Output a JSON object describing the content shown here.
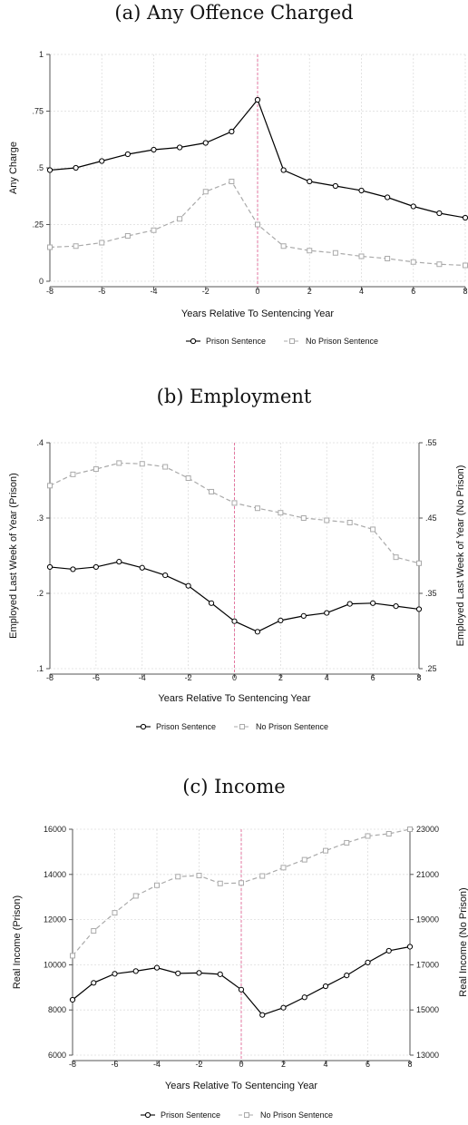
{
  "chart_data": [
    {
      "type": "line",
      "title": "(a) Any Offence Charged",
      "xlabel": "Years Relative To Sentencing Year",
      "ylabel": "Any Charge",
      "x": [
        -8,
        -7,
        -6,
        -5,
        -4,
        -3,
        -2,
        -1,
        0,
        1,
        2,
        3,
        4,
        5,
        6,
        7,
        8
      ],
      "xticks": [
        "-8",
        "-6",
        "-4",
        "-2",
        "0",
        "2",
        "4",
        "6",
        "8"
      ],
      "xlim": [
        -8,
        8
      ],
      "ylim": [
        0,
        1
      ],
      "yticks": [
        {
          "v": 0,
          "label": "0"
        },
        {
          "v": 0.25,
          "label": ".25"
        },
        {
          "v": 0.5,
          "label": ".5"
        },
        {
          "v": 0.75,
          "label": ".75"
        },
        {
          "v": 1,
          "label": "1"
        }
      ],
      "series": [
        {
          "name": "Prison Sentence",
          "axis": "left",
          "values": [
            0.49,
            0.5,
            0.53,
            0.56,
            0.58,
            0.59,
            0.61,
            0.66,
            0.8,
            0.49,
            0.44,
            0.42,
            0.4,
            0.37,
            0.33,
            0.3,
            0.28
          ]
        },
        {
          "name": "No Prison Sentence",
          "axis": "left",
          "values": [
            0.15,
            0.155,
            0.17,
            0.2,
            0.225,
            0.275,
            0.395,
            0.44,
            0.25,
            0.155,
            0.135,
            0.125,
            0.11,
            0.1,
            0.085,
            0.075,
            0.07
          ]
        }
      ],
      "grid": true,
      "legend": "bottom"
    },
    {
      "type": "line",
      "title": "(b) Employment",
      "xlabel": "Years Relative To Sentencing Year",
      "ylabel": "Employed Last Week of Year (Prison)",
      "ylabel_right": "Employed Last Week of Year (No Prison)",
      "x": [
        -8,
        -7,
        -6,
        -5,
        -4,
        -3,
        -2,
        -1,
        0,
        1,
        2,
        3,
        4,
        5,
        6,
        7,
        8
      ],
      "xticks": [
        "-8",
        "-6",
        "-4",
        "-2",
        "0",
        "2",
        "4",
        "6",
        "8"
      ],
      "xlim": [
        -8,
        8
      ],
      "ylim": [
        0.1,
        0.4
      ],
      "ylim_right": [
        0.25,
        0.55
      ],
      "yticks": [
        {
          "v": 0.1,
          "label": ".1"
        },
        {
          "v": 0.2,
          "label": ".2"
        },
        {
          "v": 0.3,
          "label": ".3"
        },
        {
          "v": 0.4,
          "label": ".4"
        }
      ],
      "yticks_right": [
        {
          "v": 0.25,
          "label": ".25"
        },
        {
          "v": 0.35,
          "label": ".35"
        },
        {
          "v": 0.45,
          "label": ".45"
        },
        {
          "v": 0.55,
          "label": ".55"
        }
      ],
      "series": [
        {
          "name": "Prison Sentence",
          "axis": "left",
          "values": [
            0.235,
            0.232,
            0.235,
            0.242,
            0.234,
            0.224,
            0.21,
            0.187,
            0.163,
            0.149,
            0.164,
            0.17,
            0.174,
            0.186,
            0.187,
            0.183,
            0.179
          ]
        },
        {
          "name": "No Prison Sentence",
          "axis": "right",
          "values": [
            0.493,
            0.508,
            0.515,
            0.523,
            0.522,
            0.518,
            0.503,
            0.485,
            0.47,
            0.463,
            0.457,
            0.45,
            0.447,
            0.444,
            0.435,
            0.398,
            0.39
          ]
        }
      ],
      "grid": true,
      "legend": "bottom"
    },
    {
      "type": "line",
      "title": "(c) Income",
      "xlabel": "Years Relative To Sentencing Year",
      "ylabel": "Real Income (Prison)",
      "ylabel_right": "Real Income (No Prison)",
      "x": [
        -8,
        -7,
        -6,
        -5,
        -4,
        -3,
        -2,
        -1,
        0,
        1,
        2,
        3,
        4,
        5,
        6,
        7,
        8
      ],
      "xticks": [
        "-8",
        "-6",
        "-4",
        "-2",
        "0",
        "2",
        "4",
        "6",
        "8"
      ],
      "xlim": [
        -8,
        8
      ],
      "ylim": [
        6000,
        16000
      ],
      "ylim_right": [
        13000,
        23000
      ],
      "yticks": [
        {
          "v": 6000,
          "label": "6000"
        },
        {
          "v": 8000,
          "label": "8000"
        },
        {
          "v": 10000,
          "label": "10000"
        },
        {
          "v": 12000,
          "label": "12000"
        },
        {
          "v": 14000,
          "label": "14000"
        },
        {
          "v": 16000,
          "label": "16000"
        }
      ],
      "yticks_right": [
        {
          "v": 13000,
          "label": "13000"
        },
        {
          "v": 15000,
          "label": "15000"
        },
        {
          "v": 17000,
          "label": "17000"
        },
        {
          "v": 19000,
          "label": "19000"
        },
        {
          "v": 21000,
          "label": "21000"
        },
        {
          "v": 23000,
          "label": "23000"
        }
      ],
      "series": [
        {
          "name": "Prison Sentence",
          "axis": "left",
          "values": [
            8450,
            9200,
            9600,
            9720,
            9870,
            9620,
            9640,
            9580,
            8900,
            7780,
            8100,
            8560,
            9050,
            9530,
            10100,
            10620,
            10800
          ]
        },
        {
          "name": "No Prison Sentence",
          "axis": "right",
          "values": [
            17400,
            18500,
            19300,
            20050,
            20520,
            20900,
            20950,
            20600,
            20620,
            20930,
            21300,
            21650,
            22050,
            22400,
            22700,
            22800,
            23000
          ]
        }
      ],
      "grid": true,
      "legend": "bottom"
    }
  ],
  "colors": {
    "prison": "#000000",
    "no_prison": "#aaaaaa",
    "zero_line": "#e377a0",
    "grid": "#dddddd"
  }
}
